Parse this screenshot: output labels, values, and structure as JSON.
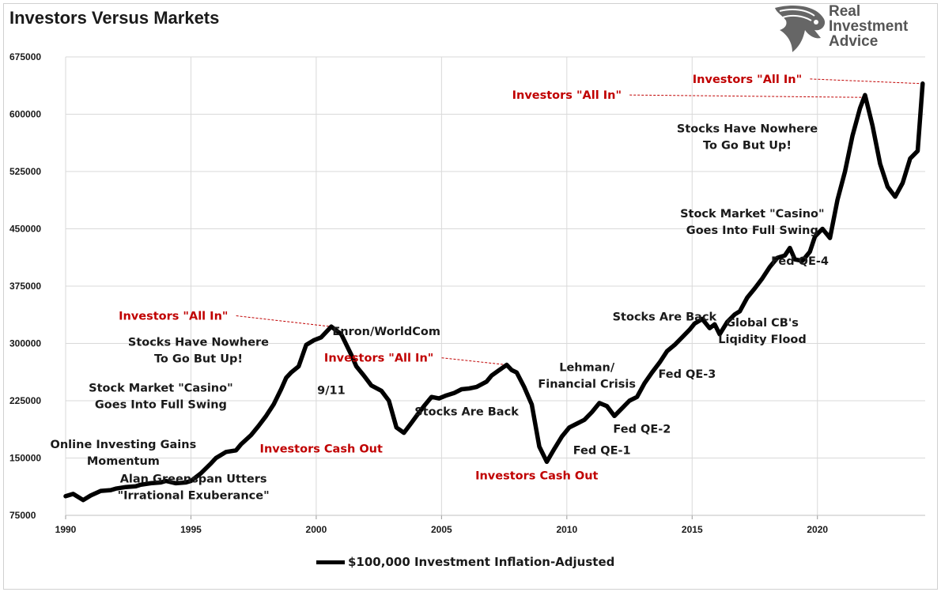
{
  "title": "Investors Versus Markets",
  "logo": {
    "line1": "Real",
    "line2": "Investment",
    "line3": "Advice",
    "icon": "eagle-head-icon"
  },
  "colors": {
    "line": "#000000",
    "red_annotation": "#c00000",
    "black_annotation": "#1a1a1a",
    "grid": "#d9d9d9"
  },
  "chart_data": {
    "type": "line",
    "title": "Investors Versus Markets",
    "xlabel": "",
    "ylabel": "",
    "xlim": [
      1990,
      2024.3
    ],
    "ylim": [
      75000,
      675000
    ],
    "grid": true,
    "legend_position": "bottom",
    "x_ticks": [
      "1990",
      "1995",
      "2000",
      "2005",
      "2010",
      "2015",
      "2020"
    ],
    "y_ticks": [
      "75000",
      "150000",
      "225000",
      "300000",
      "375000",
      "450000",
      "525000",
      "600000",
      "675000"
    ],
    "series": [
      {
        "name": "$100,000 Investment Inflation-Adjusted",
        "x": [
          1990,
          1990.3,
          1990.7,
          1991.0,
          1991.4,
          1991.8,
          1992.0,
          1992.4,
          1992.8,
          1993.0,
          1993.4,
          1993.8,
          1994.0,
          1994.4,
          1994.8,
          1995.0,
          1995.4,
          1995.8,
          1996.0,
          1996.4,
          1996.8,
          1997.0,
          1997.4,
          1997.7,
          1998.0,
          1998.3,
          1998.6,
          1998.8,
          1999.0,
          1999.3,
          1999.6,
          1999.9,
          2000.2,
          2000.6,
          2001.0,
          2001.4,
          2001.6,
          2001.9,
          2002.2,
          2002.6,
          2002.9,
          2003.2,
          2003.5,
          2003.8,
          2004.0,
          2004.3,
          2004.6,
          2004.9,
          2005.2,
          2005.5,
          2005.8,
          2006.1,
          2006.4,
          2006.8,
          2007.0,
          2007.3,
          2007.6,
          2007.8,
          2008.0,
          2008.3,
          2008.6,
          2008.9,
          2009.2,
          2009.5,
          2009.8,
          2010.1,
          2010.4,
          2010.7,
          2011.0,
          2011.3,
          2011.6,
          2011.9,
          2012.2,
          2012.5,
          2012.8,
          2013.1,
          2013.4,
          2013.7,
          2014.0,
          2014.3,
          2014.6,
          2014.9,
          2015.1,
          2015.4,
          2015.7,
          2015.9,
          2016.1,
          2016.4,
          2016.7,
          2016.9,
          2017.2,
          2017.5,
          2017.8,
          2018.1,
          2018.4,
          2018.7,
          2018.9,
          2019.1,
          2019.4,
          2019.7,
          2019.9,
          2020.2,
          2020.5,
          2020.8,
          2021.1,
          2021.4,
          2021.7,
          2021.9,
          2022.2,
          2022.5,
          2022.8,
          2023.1,
          2023.4,
          2023.7,
          2024.0,
          2024.2
        ],
        "values": [
          100000,
          103000,
          95000,
          101000,
          107000,
          108000,
          110000,
          112000,
          113000,
          115000,
          117000,
          118000,
          120000,
          117000,
          118000,
          120000,
          130000,
          143000,
          150000,
          158000,
          160000,
          168000,
          180000,
          192000,
          205000,
          220000,
          240000,
          255000,
          262000,
          270000,
          298000,
          304000,
          308000,
          322000,
          312000,
          285000,
          270000,
          258000,
          245000,
          238000,
          225000,
          190000,
          183000,
          196000,
          205000,
          218000,
          230000,
          228000,
          232000,
          235000,
          240000,
          241000,
          243000,
          250000,
          258000,
          265000,
          272000,
          265000,
          262000,
          243000,
          220000,
          165000,
          145000,
          162000,
          178000,
          190000,
          195000,
          200000,
          210000,
          222000,
          218000,
          205000,
          215000,
          225000,
          230000,
          248000,
          262000,
          275000,
          290000,
          298000,
          308000,
          318000,
          326000,
          332000,
          320000,
          325000,
          312000,
          328000,
          338000,
          342000,
          360000,
          372000,
          385000,
          400000,
          412000,
          415000,
          425000,
          410000,
          408000,
          420000,
          440000,
          450000,
          438000,
          488000,
          525000,
          572000,
          608000,
          625000,
          585000,
          535000,
          505000,
          492000,
          510000,
          542000,
          552000,
          640000
        ]
      }
    ],
    "annotations": [
      {
        "text": "Investors \"All In\"",
        "color": "red",
        "x": 1994.3,
        "y": 331000,
        "target_x": 2000.6,
        "target_y": 322000
      },
      {
        "text": "Investors \"All In\"",
        "color": "red",
        "x": 2002.5,
        "y": 276000,
        "target_x": 2007.6,
        "target_y": 272000
      },
      {
        "text": "Investors \"All In\"",
        "color": "red",
        "x": 2010.0,
        "y": 620000,
        "target_x": 2021.9,
        "target_y": 622000
      },
      {
        "text": "Investors \"All In\"",
        "color": "red",
        "x": 2017.2,
        "y": 641000,
        "target_x": 2024.2,
        "target_y": 640000
      },
      {
        "text": "Investors Cash Out",
        "color": "red",
        "x": 2000.2,
        "y": 157000
      },
      {
        "text": "Investors Cash Out",
        "color": "red",
        "x": 2008.8,
        "y": 122000
      },
      {
        "text": "Enron/WorldCom",
        "color": "black",
        "x": 2002.8,
        "y": 311000
      },
      {
        "text": "Stocks Have Nowhere\nTo Go But Up!",
        "color": "black",
        "x": 1995.3,
        "y": 297000
      },
      {
        "text": "9/11",
        "color": "black",
        "x": 2000.6,
        "y": 234000
      },
      {
        "text": "Stocks Are Back",
        "color": "black",
        "x": 2006.0,
        "y": 206000
      },
      {
        "text": "Stock Market \"Casino\"\nGoes Into Full Swing",
        "color": "black",
        "x": 1993.8,
        "y": 237000
      },
      {
        "text": "Online Investing Gains\nMomentum",
        "color": "black",
        "x": 1992.3,
        "y": 163000
      },
      {
        "text": "Alan Greenspan Utters\n\"Irrational Exuberance\"",
        "color": "black",
        "x": 1995.1,
        "y": 118000
      },
      {
        "text": "Lehman/\nFinancial Crisis",
        "color": "black",
        "x": 2010.8,
        "y": 264000
      },
      {
        "text": "Fed QE-1",
        "color": "black",
        "x": 2011.4,
        "y": 155000
      },
      {
        "text": "Fed QE-2",
        "color": "black",
        "x": 2013.0,
        "y": 183000
      },
      {
        "text": "Fed QE-3",
        "color": "black",
        "x": 2014.8,
        "y": 255000
      },
      {
        "text": "Stocks Are Back",
        "color": "black",
        "x": 2013.9,
        "y": 330000
      },
      {
        "text": "Global CB's\nLiqidity Flood",
        "color": "black",
        "x": 2017.8,
        "y": 322000
      },
      {
        "text": "Stock Market \"Casino\"\nGoes Into Full Swing",
        "color": "black",
        "x": 2017.4,
        "y": 465000
      },
      {
        "text": "Fed QE-4",
        "color": "black",
        "x": 2019.3,
        "y": 403000
      },
      {
        "text": "Stocks Have Nowhere\nTo Go But Up!",
        "color": "black",
        "x": 2017.2,
        "y": 576000
      }
    ]
  }
}
